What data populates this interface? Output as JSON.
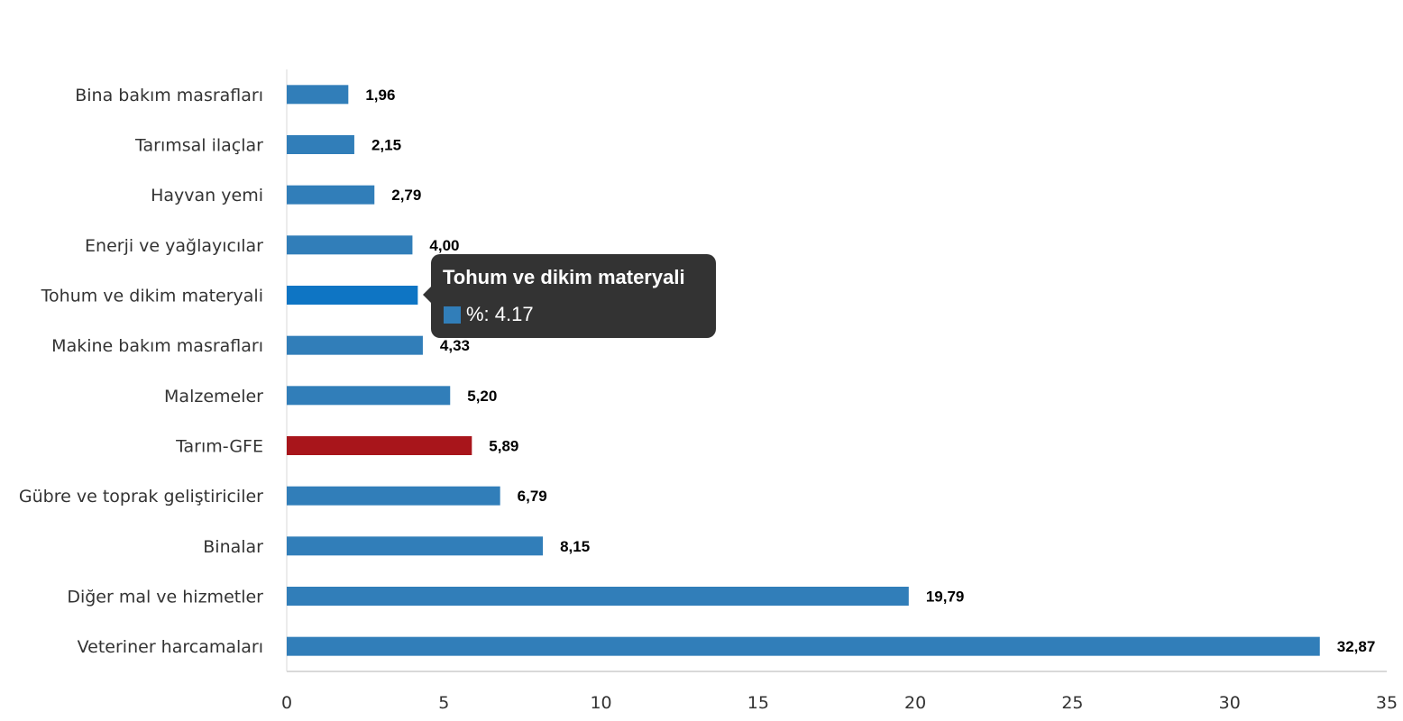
{
  "chart_data": {
    "type": "bar",
    "orientation": "horizontal",
    "categories": [
      "Bina bakım masrafları",
      "Tarımsal ilaçlar",
      "Hayvan yemi",
      "Enerji  ve yağlayıcılar",
      "Tohum ve dikim materyali",
      "Makine bakım masrafları",
      "Malzemeler",
      "Tarım-GFE",
      "Gübre ve toprak geliştiriciler",
      "Binalar",
      "Diğer mal ve hizmetler",
      "Veteriner harcamaları"
    ],
    "values": [
      1.96,
      2.15,
      2.79,
      4.0,
      4.17,
      4.33,
      5.2,
      5.89,
      6.79,
      8.15,
      19.79,
      32.87
    ],
    "data_labels": [
      "1,96",
      "2,15",
      "2,79",
      "4,00",
      "4,17",
      "4,33",
      "5,20",
      "5,89",
      "6,79",
      "8,15",
      "19,79",
      "32,87"
    ],
    "xlim": [
      0,
      35
    ],
    "xticks": [
      0,
      5,
      10,
      15,
      20,
      25,
      30,
      35
    ],
    "grid": false,
    "colors": {
      "default": "#317EB9",
      "highlight": "#A8151B",
      "hover": "#0E75C4"
    },
    "highlighted_category": "Tarım-GFE",
    "hovered_category": "Tohum ve dikim materyali"
  },
  "tooltip": {
    "title": "Tohum ve dikim materyali",
    "series_label": "%: 4.17",
    "swatch_color": "#317EB9"
  }
}
